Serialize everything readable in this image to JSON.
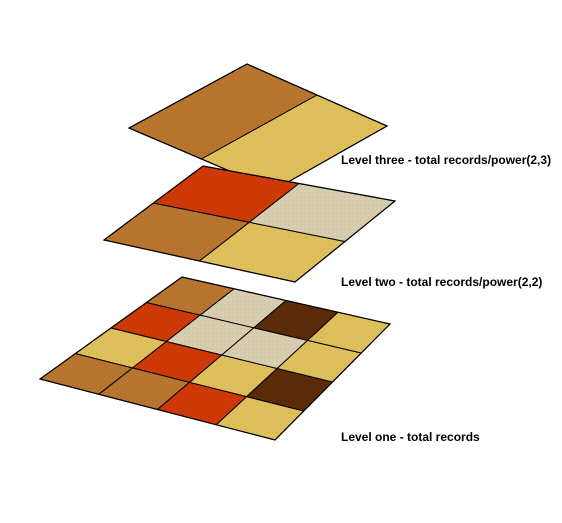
{
  "palette": {
    "brown": "#b9762f",
    "gold": "#e1c15b",
    "red": "#d03a06",
    "beige": "#d9cfb0",
    "dark_brown": "#5c2b09",
    "outline": "#000000"
  },
  "levels": [
    {
      "id": "level-three",
      "label": "Level three - total records/power(2,3)",
      "rows": 1,
      "cols": 2,
      "cells": [
        [
          "brown",
          "gold"
        ]
      ]
    },
    {
      "id": "level-two",
      "label": "Level two - total records/power(2,2)",
      "rows": 2,
      "cols": 2,
      "cells": [
        [
          "brown",
          "gold"
        ],
        [
          "red",
          "beige"
        ]
      ]
    },
    {
      "id": "level-one",
      "label": "Level one - total records",
      "rows": 4,
      "cols": 4,
      "cells": [
        [
          "brown",
          "brown",
          "red",
          "gold"
        ],
        [
          "gold",
          "red",
          "gold",
          "dark_brown"
        ],
        [
          "red",
          "beige",
          "beige",
          "gold"
        ],
        [
          "brown",
          "beige",
          "dark_brown",
          "gold"
        ]
      ]
    }
  ]
}
